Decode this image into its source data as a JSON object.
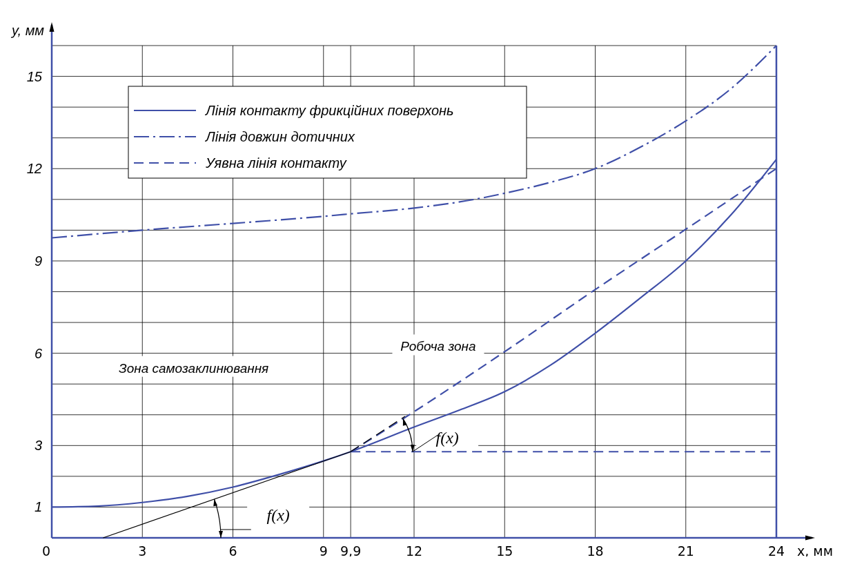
{
  "chart_data": {
    "type": "line",
    "xlabel": "x, мм",
    "ylabel": "y, мм",
    "xlim": [
      0,
      24
    ],
    "ylim": [
      0,
      16
    ],
    "xticks": [
      0,
      3,
      6,
      9,
      {
        "value": 9.9,
        "label": "9,9"
      },
      12,
      15,
      18,
      21,
      24
    ],
    "yticks": [
      {
        "value": 0,
        "label": null
      },
      1,
      {
        "value": 2,
        "label": null
      },
      3,
      {
        "value": 4,
        "label": null
      },
      {
        "value": 5,
        "label": null
      },
      6,
      {
        "value": 7,
        "label": null
      },
      {
        "value": 8,
        "label": null
      },
      9,
      {
        "value": 10,
        "label": null
      },
      {
        "value": 11,
        "label": null
      },
      12,
      {
        "value": 13,
        "label": null
      },
      {
        "value": 14,
        "label": null
      },
      15,
      {
        "value": 16,
        "label": null
      }
    ],
    "grid": true,
    "legend": "top left",
    "series": [
      {
        "name": "Лінія контакту фрикційних поверхонь",
        "color": "#3f4fa8",
        "line_style": "solid",
        "x": [
          0,
          1.5,
          3,
          4.5,
          6,
          7.5,
          9,
          9.9,
          12,
          13.5,
          15,
          16.5,
          18,
          19.5,
          21,
          22.5,
          24
        ],
        "values": [
          1.0,
          1.03,
          1.15,
          1.35,
          1.65,
          2.05,
          2.5,
          2.8,
          3.6,
          4.15,
          4.75,
          5.6,
          6.65,
          7.8,
          9.0,
          10.5,
          12.3
        ]
      },
      {
        "name": "Лінія довжин дотичних",
        "color": "#3f4fa8",
        "line_style": "dashdot",
        "x": [
          0,
          3,
          6,
          9,
          9.9,
          12,
          14,
          15,
          16.5,
          18,
          19.5,
          21,
          22.5,
          24
        ],
        "values": [
          9.75,
          10.0,
          10.22,
          10.45,
          10.53,
          10.72,
          11.0,
          11.2,
          11.55,
          12.0,
          12.7,
          13.55,
          14.6,
          16
        ]
      },
      {
        "name": "Уявна лінія контакту",
        "color": "#3f4fa8",
        "line_style": "dashed",
        "x": [
          9.9,
          12,
          15,
          18,
          21,
          24
        ],
        "values": [
          2.8,
          4.1,
          6.05,
          8.07,
          10.03,
          12.0
        ]
      },
      {
        "color": "#3f4fa8",
        "line_style": "dashed",
        "x": [
          9.9,
          24
        ],
        "values": [
          2.8,
          2.8
        ]
      },
      {
        "color": "#000000",
        "line_style": "solid",
        "x": [
          1.7,
          9.9
        ],
        "values": [
          0,
          2.8
        ]
      },
      {
        "color": "#000000",
        "line_style": "dashed",
        "x": [
          9.9,
          11.7
        ],
        "values": [
          2.8,
          3.95
        ]
      }
    ],
    "annotations": [
      "f(x)",
      "f(x)",
      "Зона самозаклинювання",
      "Робоча зона"
    ]
  }
}
